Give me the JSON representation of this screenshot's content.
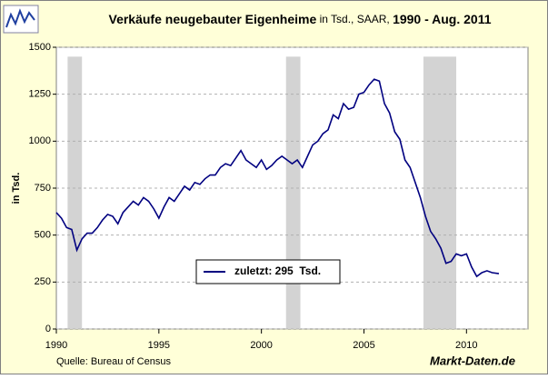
{
  "chart_data": {
    "type": "line",
    "title": "Verkäufe neugebauter Eigenheime",
    "title_mid": " in Tsd., SAAR, ",
    "title_end": "1990 - Aug. 2011",
    "ylabel": "in Tsd.",
    "source": "Quelle: Bureau of Census",
    "brand": "Markt-Daten.de",
    "xlim": [
      1990,
      2013
    ],
    "xticks": [
      1990,
      1995,
      2000,
      2005,
      2010
    ],
    "ylim": [
      0,
      1500
    ],
    "yticks": [
      0,
      250,
      500,
      750,
      1000,
      1250,
      1500
    ],
    "grid": true,
    "recession_ymax": 1450,
    "recessions": [
      {
        "start": 1990.55,
        "end": 1991.25
      },
      {
        "start": 2001.2,
        "end": 2001.9
      },
      {
        "start": 2007.9,
        "end": 2009.5
      }
    ],
    "x": [
      1990,
      1990.25,
      1990.5,
      1990.75,
      1991,
      1991.25,
      1991.5,
      1991.75,
      1992,
      1992.25,
      1992.5,
      1992.75,
      1993,
      1993.25,
      1993.5,
      1993.75,
      1994,
      1994.25,
      1994.5,
      1994.75,
      1995,
      1995.25,
      1995.5,
      1995.75,
      1996,
      1996.25,
      1996.5,
      1996.75,
      1997,
      1997.25,
      1997.5,
      1997.75,
      1998,
      1998.25,
      1998.5,
      1998.75,
      1999,
      1999.25,
      1999.5,
      1999.75,
      2000,
      2000.25,
      2000.5,
      2000.75,
      2001,
      2001.25,
      2001.5,
      2001.75,
      2002,
      2002.25,
      2002.5,
      2002.75,
      2003,
      2003.25,
      2003.5,
      2003.75,
      2004,
      2004.25,
      2004.5,
      2004.75,
      2005,
      2005.25,
      2005.5,
      2005.75,
      2006,
      2006.25,
      2006.5,
      2006.75,
      2007,
      2007.25,
      2007.5,
      2007.75,
      2008,
      2008.25,
      2008.5,
      2008.75,
      2009,
      2009.25,
      2009.5,
      2009.75,
      2010,
      2010.25,
      2010.5,
      2010.75,
      2011,
      2011.25,
      2011.58
    ],
    "series": [
      {
        "name": "zuletzt: 295  Tsd.",
        "color": "#000080",
        "values": [
          620,
          590,
          540,
          530,
          420,
          480,
          510,
          510,
          540,
          580,
          610,
          600,
          560,
          620,
          650,
          680,
          660,
          700,
          680,
          640,
          590,
          650,
          700,
          680,
          720,
          760,
          740,
          780,
          770,
          800,
          820,
          820,
          860,
          880,
          870,
          910,
          950,
          900,
          880,
          860,
          900,
          850,
          870,
          900,
          920,
          900,
          880,
          900,
          860,
          920,
          980,
          1000,
          1040,
          1060,
          1140,
          1120,
          1200,
          1170,
          1180,
          1250,
          1260,
          1300,
          1330,
          1320,
          1200,
          1150,
          1050,
          1010,
          900,
          860,
          780,
          700,
          600,
          520,
          480,
          430,
          350,
          360,
          400,
          390,
          400,
          330,
          280,
          300,
          310,
          300,
          295
        ]
      }
    ]
  }
}
